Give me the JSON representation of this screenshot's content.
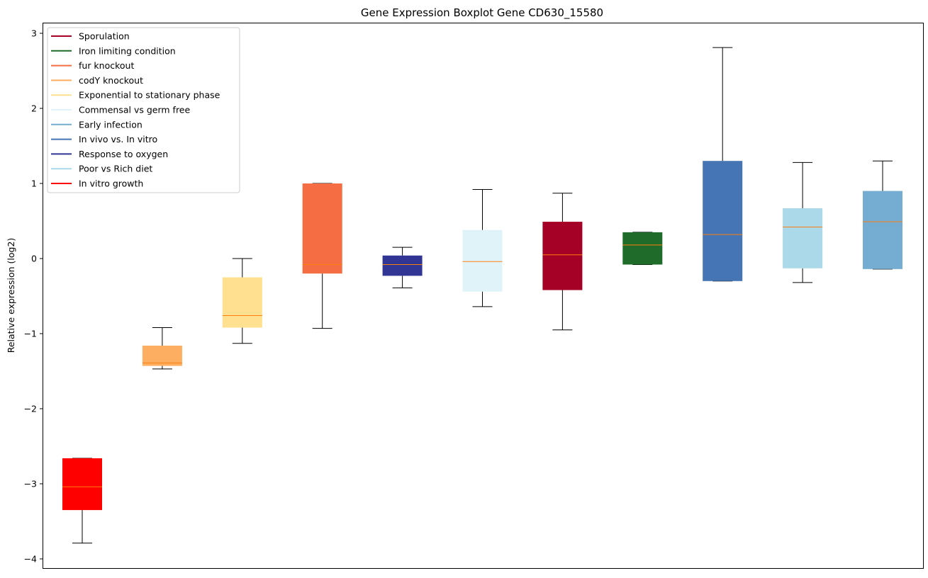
{
  "chart_data": {
    "type": "boxplot",
    "title": "Gene Expression Boxplot Gene CD630_15580",
    "xlabel": "",
    "ylabel": "Relative expression (log2)",
    "ylim": [
      -4.1,
      3.15
    ],
    "yticks": [
      3,
      2,
      1,
      0,
      -1,
      -2,
      -3,
      -4
    ],
    "ytick_labels": [
      "3",
      "2",
      "1",
      "0",
      "−1",
      "−2",
      "−3",
      "−4"
    ],
    "legend_position": "top-left",
    "median_color": "#ff7f0e",
    "legend": [
      {
        "label": "Sporulation",
        "color": "#a50026"
      },
      {
        "label": "Iron limiting condition",
        "color": "#1f6b2a"
      },
      {
        "label": "fur knockout",
        "color": "#f46d43"
      },
      {
        "label": "codY knockout",
        "color": "#fdae61"
      },
      {
        "label": "Exponential to stationary phase",
        "color": "#fee090"
      },
      {
        "label": "Commensal vs germ free",
        "color": "#e0f3f8"
      },
      {
        "label": "Early infection",
        "color": "#74add1"
      },
      {
        "label": "In vivo vs. In vitro",
        "color": "#4575b4"
      },
      {
        "label": "Response to oxygen",
        "color": "#313695"
      },
      {
        "label": "Poor vs Rich diet",
        "color": "#abd9e9"
      },
      {
        "label": "In vitro growth",
        "color": "#ff0000"
      }
    ],
    "boxes": [
      {
        "condition": "In vitro growth",
        "color": "#ff0000",
        "whislo": -3.79,
        "q1": -3.35,
        "med": -3.04,
        "q3": -2.66,
        "whishi": -2.66
      },
      {
        "condition": "codY knockout",
        "color": "#fdae61",
        "whislo": -1.47,
        "q1": -1.43,
        "med": -1.39,
        "q3": -1.16,
        "whishi": -0.92
      },
      {
        "condition": "Exponential to stationary phase",
        "color": "#fee090",
        "whislo": -1.13,
        "q1": -0.92,
        "med": -0.76,
        "q3": -0.25,
        "whishi": 0.0
      },
      {
        "condition": "fur knockout",
        "color": "#f46d43",
        "whislo": -0.93,
        "q1": -0.2,
        "med": -0.08,
        "q3": 1.0,
        "whishi": 1.0
      },
      {
        "condition": "Response to oxygen",
        "color": "#313695",
        "whislo": -0.39,
        "q1": -0.23,
        "med": -0.08,
        "q3": 0.04,
        "whishi": 0.15
      },
      {
        "condition": "Commensal vs germ free",
        "color": "#e0f3f8",
        "whislo": -0.64,
        "q1": -0.44,
        "med": -0.04,
        "q3": 0.38,
        "whishi": 0.92
      },
      {
        "condition": "Sporulation",
        "color": "#a50026",
        "whislo": -0.95,
        "q1": -0.42,
        "med": 0.05,
        "q3": 0.49,
        "whishi": 0.87
      },
      {
        "condition": "Iron limiting condition",
        "color": "#1f6b2a",
        "whislo": -0.08,
        "q1": -0.08,
        "med": 0.18,
        "q3": 0.35,
        "whishi": 0.35
      },
      {
        "condition": "In vivo vs. In vitro",
        "color": "#4575b4",
        "whislo": -0.3,
        "q1": -0.3,
        "med": 0.32,
        "q3": 1.3,
        "whishi": 2.81
      },
      {
        "condition": "Poor vs Rich diet",
        "color": "#abd9e9",
        "whislo": -0.32,
        "q1": -0.13,
        "med": 0.42,
        "q3": 0.67,
        "whishi": 1.28
      },
      {
        "condition": "Early infection",
        "color": "#74add1",
        "whislo": -0.14,
        "q1": -0.14,
        "med": 0.49,
        "q3": 0.9,
        "whishi": 1.3
      }
    ]
  }
}
